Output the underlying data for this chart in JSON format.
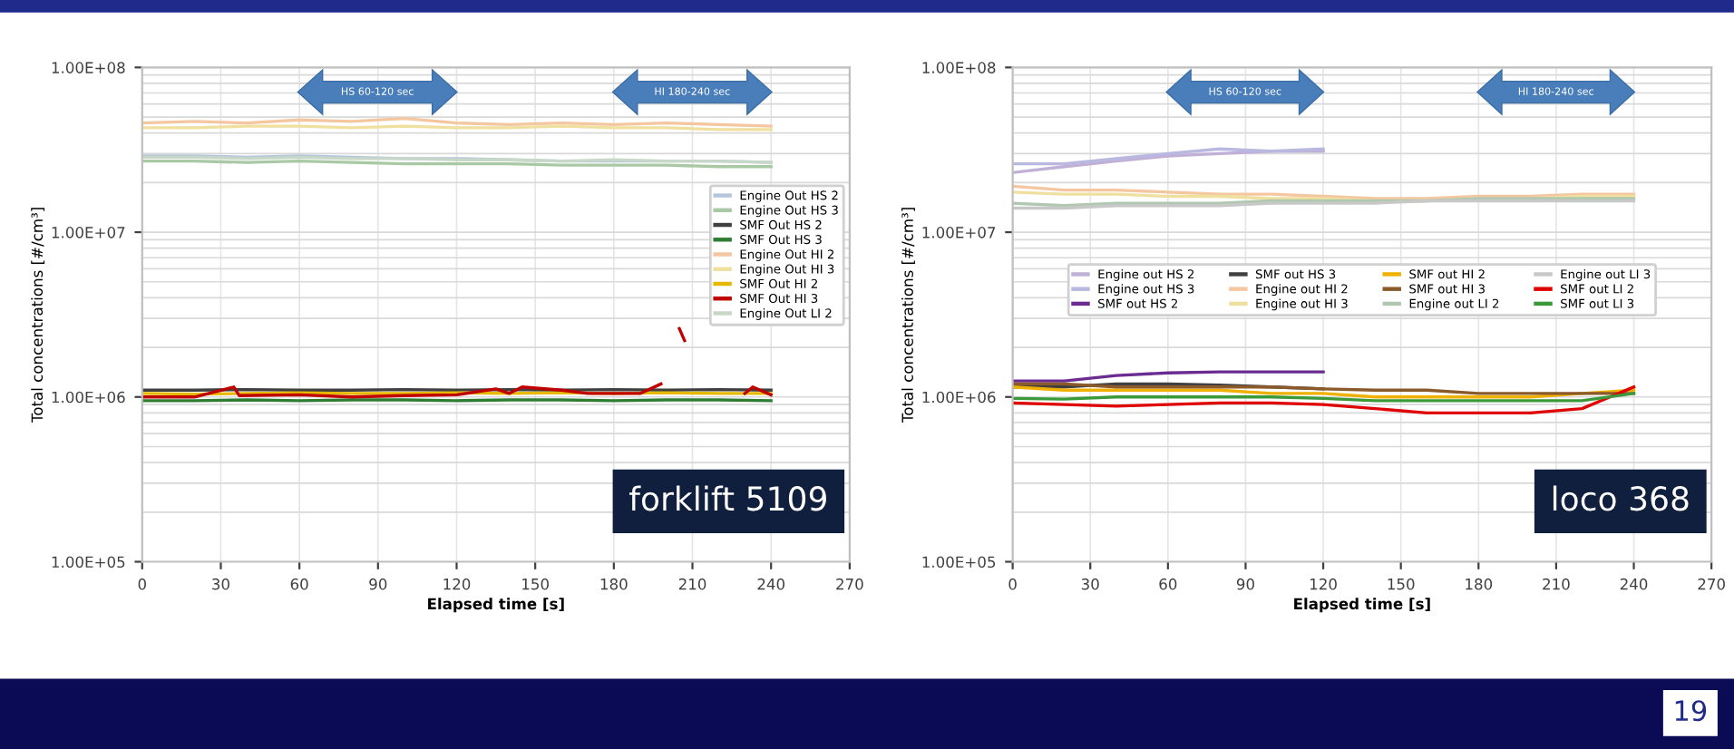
{
  "chart_data": [
    {
      "type": "line",
      "xlabel": "Elapsed time [s]",
      "ylabel": "Total concentrations [#/cm³]",
      "x": [
        0,
        20,
        40,
        60,
        80,
        100,
        120,
        140,
        160,
        180,
        200,
        220,
        240
      ],
      "xlim": [
        0,
        270
      ],
      "xticks": [
        0,
        30,
        60,
        90,
        120,
        150,
        180,
        210,
        240,
        270
      ],
      "log": "y",
      "ylim": [
        100000,
        100000000
      ],
      "yticks": [
        {
          "value": 100000,
          "label": "1.00E+05"
        },
        {
          "value": 1000000,
          "label": "1.00E+06"
        },
        {
          "value": 10000000,
          "label": "1.00E+07"
        },
        {
          "value": 100000000,
          "label": "1.00E+08"
        }
      ],
      "grid": true,
      "legend": "right",
      "annotations": [
        "HS 60-120 sec",
        "HI 180-240 sec",
        "forklift 5109"
      ],
      "series": [
        {
          "name": "Engine Out HS 2",
          "color": "#b4c6dc",
          "values": [
            29000000,
            29000000,
            28500000,
            29000000,
            28500000,
            28000000,
            28000000,
            27500000,
            27000000,
            27000000,
            27000000,
            27000000,
            26500000
          ]
        },
        {
          "name": "Engine Out HS 3",
          "color": "#a9c9a4",
          "values": [
            27000000,
            27000000,
            26500000,
            27000000,
            26500000,
            26000000,
            26000000,
            26000000,
            25500000,
            25500000,
            25500000,
            25000000,
            25000000
          ]
        },
        {
          "name": "SMF Out HS 2",
          "color": "#404040",
          "values": [
            1100000,
            1100000,
            1110000,
            1100000,
            1100000,
            1110000,
            1100000,
            1110000,
            1100000,
            1110000,
            1100000,
            1110000,
            1100000
          ]
        },
        {
          "name": "SMF Out HS 3",
          "color": "#2e7d32",
          "values": [
            950000,
            950000,
            960000,
            950000,
            960000,
            960000,
            950000,
            960000,
            960000,
            950000,
            960000,
            960000,
            950000
          ]
        },
        {
          "name": "Engine Out HI 2",
          "color": "#f4c7a1",
          "values": [
            46000000,
            47000000,
            46000000,
            48000000,
            47000000,
            49000000,
            46000000,
            45000000,
            46000000,
            45000000,
            46000000,
            45000000,
            44000000
          ]
        },
        {
          "name": "Engine Out HI 3",
          "color": "#f0e0a0",
          "values": [
            43000000,
            43000000,
            44000000,
            44000000,
            43000000,
            44000000,
            43000000,
            43000000,
            44000000,
            43000000,
            43000000,
            42000000,
            42000000
          ]
        },
        {
          "name": "SMF Out HI 2",
          "color": "#e6b800",
          "values": [
            1050000,
            1040000,
            1050000,
            1060000,
            1050000,
            1050000,
            1060000,
            1050000,
            1060000,
            1050000,
            1060000,
            1050000,
            1050000
          ]
        },
        {
          "name": "SMF Out HI 3",
          "color": "#c00000",
          "x": [
            0,
            20,
            35,
            37,
            60,
            80,
            100,
            120,
            135,
            140,
            145,
            160,
            170,
            190,
            198,
            202,
            205,
            207,
            212,
            230,
            233,
            240
          ],
          "values": [
            1000000,
            1000000,
            1150000,
            1020000,
            1030000,
            1000000,
            1020000,
            1030000,
            1120000,
            1050000,
            1150000,
            1100000,
            1050000,
            1050000,
            1200000,
            null,
            2600000,
            2200000,
            null,
            1050000,
            1150000,
            1030000
          ]
        },
        {
          "name": "Engine Out LI 2",
          "color": "#c8d8c8",
          "values": [
            28500000,
            28500000,
            28000000,
            28500000,
            28000000,
            28000000,
            27500000,
            27500000,
            27000000,
            27500000,
            27000000,
            27000000,
            26500000
          ]
        }
      ]
    },
    {
      "type": "line",
      "xlabel": "Elapsed time [s]",
      "ylabel": "Total concentrations [#/cm³]",
      "x": [
        0,
        20,
        40,
        60,
        80,
        100,
        120,
        140,
        160,
        180,
        200,
        220,
        240
      ],
      "xlim": [
        0,
        270
      ],
      "xticks": [
        0,
        30,
        60,
        90,
        120,
        150,
        180,
        210,
        240,
        270
      ],
      "log": "y",
      "ylim": [
        100000,
        100000000
      ],
      "yticks": [
        {
          "value": 100000,
          "label": "1.00E+05"
        },
        {
          "value": 1000000,
          "label": "1.00E+06"
        },
        {
          "value": 10000000,
          "label": "1.00E+07"
        },
        {
          "value": 100000000,
          "label": "1.00E+08"
        }
      ],
      "grid": true,
      "legend": "center",
      "annotations": [
        "HS 60-120 sec",
        "HI 180-240 sec",
        "loco 368",
        "19"
      ],
      "series": [
        {
          "name": "Engine out HS 2",
          "color": "#c0b0d8",
          "values": [
            23000000,
            25000000,
            27000000,
            29000000,
            30000000,
            31000000,
            31000000,
            null,
            null,
            null,
            null,
            null,
            null
          ]
        },
        {
          "name": "Engine out HS 3",
          "color": "#b8b8e0",
          "values": [
            26000000,
            26000000,
            28000000,
            30000000,
            32000000,
            31000000,
            32000000,
            null,
            null,
            null,
            null,
            null,
            null
          ]
        },
        {
          "name": "SMF out HS 2",
          "color": "#6a2c91",
          "values": [
            1250000,
            1250000,
            1350000,
            1400000,
            1420000,
            1420000,
            1420000,
            null,
            null,
            null,
            null,
            null,
            null
          ]
        },
        {
          "name": "SMF out HS 3",
          "color": "#404040",
          "values": [
            1150000,
            1150000,
            1200000,
            1200000,
            1180000,
            1150000,
            1120000,
            null,
            null,
            null,
            null,
            null,
            null
          ]
        },
        {
          "name": "Engine out HI 2",
          "color": "#f4c7a1",
          "values": [
            19000000,
            18000000,
            18000000,
            17500000,
            17000000,
            17000000,
            16500000,
            16000000,
            16000000,
            16500000,
            16500000,
            17000000,
            17000000
          ]
        },
        {
          "name": "Engine out HI 3",
          "color": "#f0e0a0",
          "values": [
            17500000,
            17000000,
            17000000,
            16500000,
            16500000,
            16000000,
            16000000,
            15500000,
            15500000,
            16000000,
            16000000,
            16500000,
            16500000
          ]
        },
        {
          "name": "SMF out HI 2",
          "color": "#f0b000",
          "values": [
            1150000,
            1100000,
            1100000,
            1100000,
            1100000,
            1050000,
            1050000,
            1000000,
            1000000,
            1000000,
            1000000,
            1050000,
            1100000
          ]
        },
        {
          "name": "SMF out HI 3",
          "color": "#8b5a2b",
          "values": [
            1200000,
            1200000,
            1150000,
            1150000,
            1150000,
            1150000,
            1120000,
            1100000,
            1100000,
            1050000,
            1050000,
            1050000,
            1050000
          ]
        },
        {
          "name": "Engine out LI 2",
          "color": "#b0c8b0",
          "values": [
            15000000,
            14500000,
            15000000,
            15000000,
            15000000,
            15500000,
            15500000,
            15500000,
            15500000,
            16000000,
            16000000,
            16000000,
            16000000
          ]
        },
        {
          "name": "Engine out LI 3",
          "color": "#c8c8c8",
          "values": [
            14000000,
            14000000,
            14500000,
            14500000,
            14500000,
            15000000,
            15000000,
            15000000,
            15500000,
            15500000,
            15500000,
            15500000,
            15500000
          ]
        },
        {
          "name": "SMF out LI 2",
          "color": "#e00000",
          "values": [
            920000,
            900000,
            880000,
            900000,
            920000,
            920000,
            900000,
            850000,
            800000,
            800000,
            800000,
            850000,
            1150000
          ]
        },
        {
          "name": "SMF out LI 3",
          "color": "#3a9a3a",
          "values": [
            980000,
            970000,
            1000000,
            1000000,
            1000000,
            1000000,
            980000,
            950000,
            950000,
            950000,
            950000,
            950000,
            1050000
          ]
        }
      ]
    }
  ]
}
